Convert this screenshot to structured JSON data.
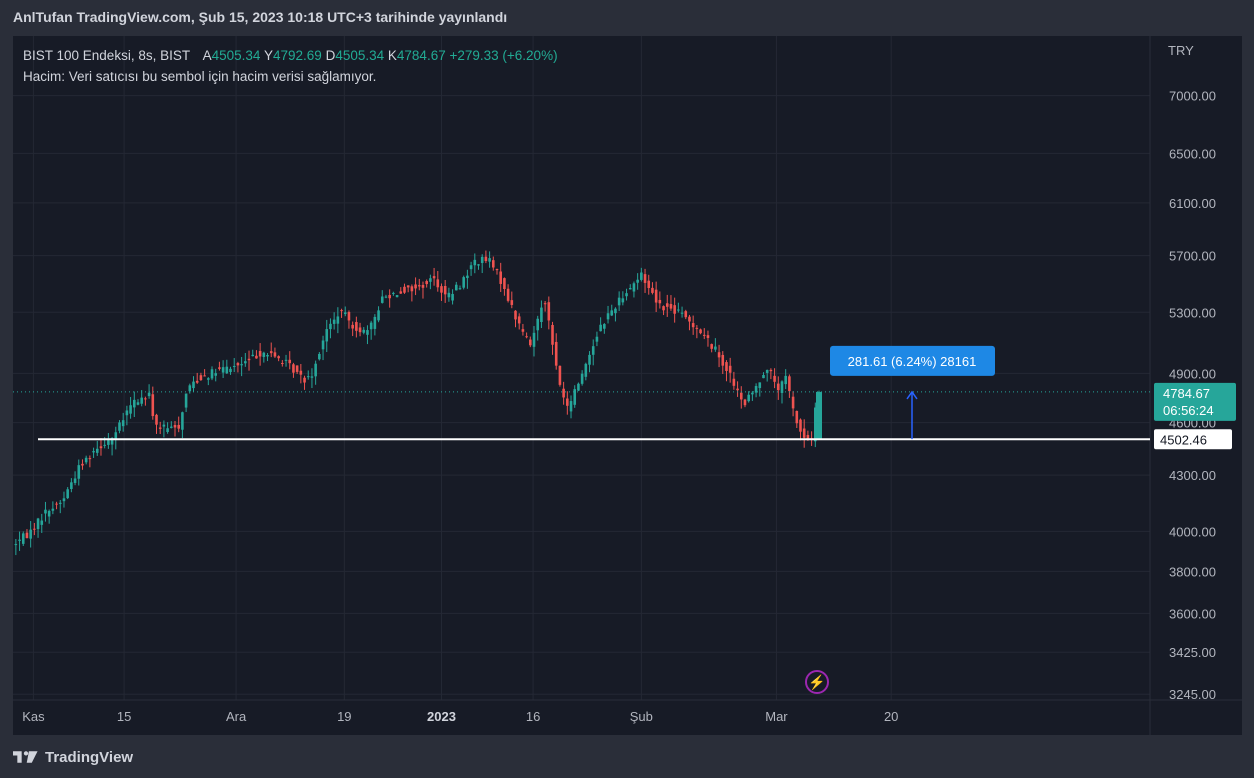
{
  "header": {
    "published": "AnlTufan TradingView.com, Şub 15, 2023 10:18 UTC+3 tarihinde yayınlandı"
  },
  "legend": {
    "symbol": "BIST 100 Endeksi, 8s, BIST",
    "open_label": "A",
    "open": "4505.34",
    "high_label": "Y",
    "high": "4792.69",
    "low_label": "D",
    "low": "4505.34",
    "close_label": "K",
    "close": "4784.67",
    "change": "+279.33 (+6.20%)",
    "volume_note": "Hacim: Veri satıcısı bu sembol için hacim verisi sağlamıyor."
  },
  "footer": {
    "brand": "TradingView"
  },
  "colors": {
    "background": "#171b26",
    "up": "#26a69a",
    "down": "#ef5350",
    "grid": "#242834",
    "text": "#b2b5be",
    "level_line": "#ffffff",
    "measure": "#2962ff",
    "last_price": "#26a69a"
  },
  "chart_data": {
    "type": "candlestick",
    "currency": "TRY",
    "y_scale": "log",
    "ylim": [
      3180,
      7300
    ],
    "y_ticks": [
      3245,
      3425,
      3600,
      3800,
      4000,
      4300,
      4600,
      4900,
      5300,
      5700,
      6100,
      6500,
      7000
    ],
    "y_tick_labels": [
      "3245.00",
      "3425.00",
      "3600.00",
      "3800.00",
      "4000.00",
      "4300.00",
      "4600.00",
      "4900.00",
      "5300.00",
      "5700.00",
      "6100.00",
      "6500.00",
      "7000.00"
    ],
    "x_ticks": [
      {
        "label": "Kas",
        "bar": 21,
        "bold": false
      },
      {
        "label": "15",
        "bar": 119,
        "bold": false
      },
      {
        "label": "Ara",
        "bar": 240,
        "bold": false
      },
      {
        "label": "19",
        "bar": 357,
        "bold": false
      },
      {
        "label": "2023",
        "bar": 462,
        "bold": true
      },
      {
        "label": "16",
        "bar": 561,
        "bold": false
      },
      {
        "label": "Şub",
        "bar": 678,
        "bold": false
      },
      {
        "label": "Mar",
        "bar": 824,
        "bold": false
      },
      {
        "label": "20",
        "bar": 948,
        "bold": false
      }
    ],
    "bar_count_visible": 1100,
    "total_bars": 730,
    "trend": [
      [
        0,
        3930
      ],
      [
        18,
        3990
      ],
      [
        36,
        4100
      ],
      [
        54,
        4160
      ],
      [
        72,
        4340
      ],
      [
        90,
        4450
      ],
      [
        110,
        4520
      ],
      [
        130,
        4720
      ],
      [
        148,
        4760
      ],
      [
        155,
        4580
      ],
      [
        170,
        4560
      ],
      [
        180,
        4580
      ],
      [
        190,
        4820
      ],
      [
        205,
        4880
      ],
      [
        225,
        4920
      ],
      [
        250,
        4960
      ],
      [
        270,
        5040
      ],
      [
        290,
        4990
      ],
      [
        305,
        4920
      ],
      [
        315,
        4860
      ],
      [
        325,
        4910
      ],
      [
        338,
        5160
      ],
      [
        355,
        5310
      ],
      [
        370,
        5200
      ],
      [
        385,
        5160
      ],
      [
        400,
        5400
      ],
      [
        420,
        5450
      ],
      [
        440,
        5470
      ],
      [
        455,
        5540
      ],
      [
        470,
        5400
      ],
      [
        485,
        5500
      ],
      [
        500,
        5660
      ],
      [
        515,
        5670
      ],
      [
        530,
        5500
      ],
      [
        545,
        5250
      ],
      [
        560,
        5080
      ],
      [
        575,
        5420
      ],
      [
        590,
        4870
      ],
      [
        600,
        4680
      ],
      [
        618,
        4930
      ],
      [
        635,
        5200
      ],
      [
        660,
        5420
      ],
      [
        680,
        5560
      ],
      [
        700,
        5350
      ],
      [
        720,
        5300
      ],
      [
        740,
        5200
      ],
      [
        760,
        5050
      ],
      [
        775,
        4900
      ],
      [
        790,
        4700
      ],
      [
        805,
        4820
      ],
      [
        815,
        4950
      ],
      [
        830,
        4780
      ],
      [
        835,
        4900
      ],
      [
        845,
        4650
      ],
      [
        855,
        4510
      ],
      [
        865,
        4505
      ],
      [
        870,
        4784.67
      ]
    ],
    "last_candle": {
      "open": 4505.34,
      "high": 4792.69,
      "low": 4505.34,
      "close": 4784.67
    },
    "horizontal_line": {
      "price": 4502.46,
      "label": "4502.46"
    },
    "last_price": {
      "value": 4784.67,
      "label": "4784.67",
      "countdown": "06:56:24"
    },
    "measure": {
      "label": "281.61 (6.24%) 28161",
      "from": 4503,
      "to": 4784.67
    },
    "annotation_marker": "lightning-icon"
  }
}
